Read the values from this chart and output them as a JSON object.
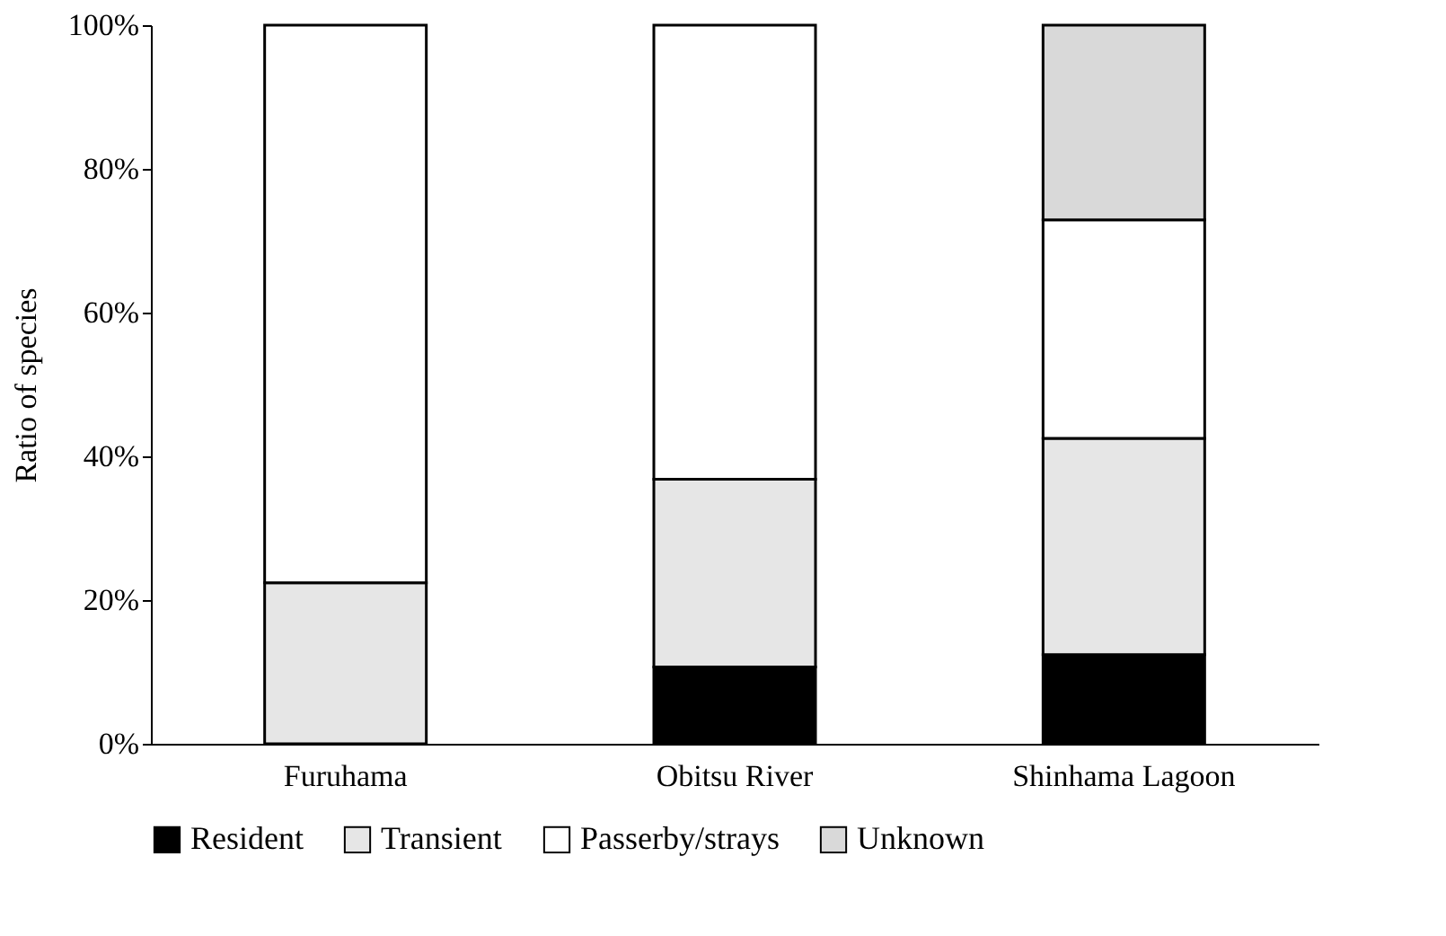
{
  "chart_data": {
    "type": "bar",
    "stacked": true,
    "ylabel": "Ratio of species",
    "categories": [
      "Furuhama",
      "Obitsu River",
      "Shinhama Lagoon"
    ],
    "series": [
      {
        "name": "Resident",
        "color": "#000000",
        "values": [
          null,
          10.7,
          12.4
        ]
      },
      {
        "name": "Transient",
        "color": "#e6e6e6",
        "values": [
          22.4,
          26.1,
          30.1
        ]
      },
      {
        "name": "Passerby/strays",
        "color": "#ffffff",
        "values": [
          77.6,
          63.2,
          30.4
        ]
      },
      {
        "name": "Unknown",
        "color": "#d9d9d9",
        "values": [
          null,
          null,
          27.1
        ]
      }
    ],
    "ylim": [
      0,
      100
    ],
    "yticks": [
      {
        "value": 0,
        "label": "0%"
      },
      {
        "value": 20,
        "label": "20%"
      },
      {
        "value": 40,
        "label": "40%"
      },
      {
        "value": 60,
        "label": "60%"
      },
      {
        "value": 80,
        "label": "80%"
      },
      {
        "value": 100,
        "label": "100%"
      }
    ],
    "grid": false,
    "legend": "bottom"
  }
}
